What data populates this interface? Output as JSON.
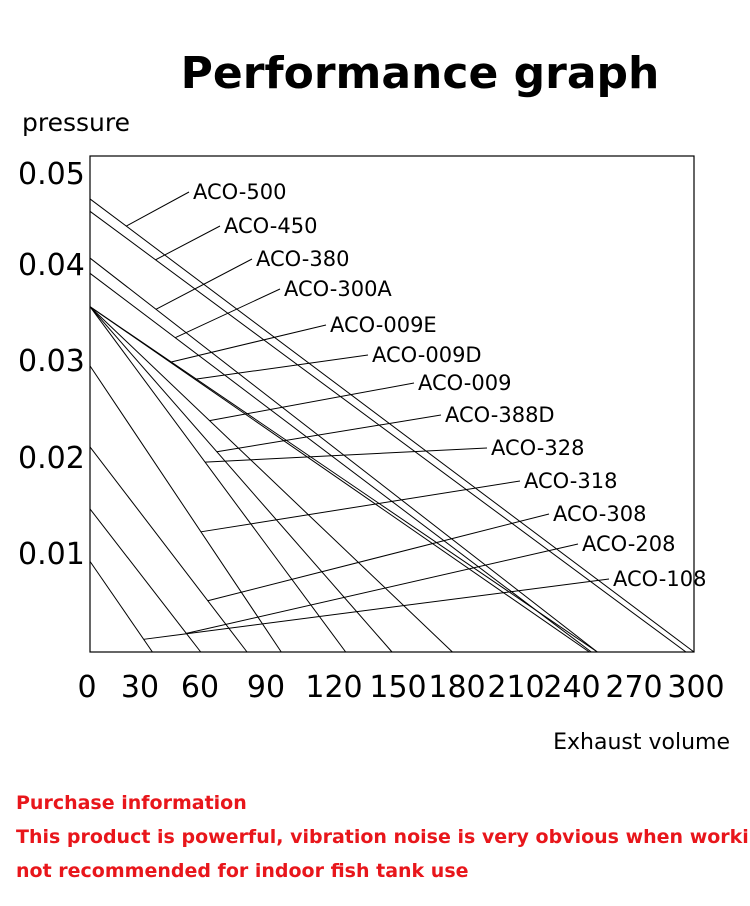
{
  "chart_data": {
    "type": "line",
    "title": "Performance graph",
    "ylabel": "pressure",
    "xlabel": "Exhaust volume",
    "xlim": [
      0,
      300
    ],
    "ylim": [
      0,
      0.052
    ],
    "x_ticks": [
      "0",
      "30",
      "60",
      "90",
      "120",
      "150",
      "180",
      "210",
      "240",
      "270",
      "300"
    ],
    "y_ticks": [
      "0.05",
      "0.04",
      "0.03",
      "0.02",
      "0.01"
    ],
    "grid": false,
    "series": [
      {
        "name": "ACO-500",
        "x": [
          0,
          300
        ],
        "y": [
          0.0475,
          0
        ]
      },
      {
        "name": "ACO-450",
        "x": [
          0,
          296
        ],
        "y": [
          0.0462,
          0
        ]
      },
      {
        "name": "ACO-380",
        "x": [
          0,
          252
        ],
        "y": [
          0.0413,
          0
        ]
      },
      {
        "name": "ACO-300A",
        "x": [
          0,
          249
        ],
        "y": [
          0.0397,
          0
        ]
      },
      {
        "name": "ACO-009E",
        "x": [
          0,
          252
        ],
        "y": [
          0.0362,
          0
        ]
      },
      {
        "name": "ACO-009D",
        "x": [
          0,
          248
        ],
        "y": [
          0.0362,
          0
        ]
      },
      {
        "name": "ACO-009",
        "x": [
          0,
          180
        ],
        "y": [
          0.0362,
          0
        ]
      },
      {
        "name": "ACO-388D",
        "x": [
          0,
          150
        ],
        "y": [
          0.0362,
          0
        ]
      },
      {
        "name": "ACO-328",
        "x": [
          0,
          127
        ],
        "y": [
          0.0362,
          0
        ]
      },
      {
        "name": "ACO-318",
        "x": [
          0,
          95
        ],
        "y": [
          0.03,
          0
        ]
      },
      {
        "name": "ACO-308",
        "x": [
          0,
          78
        ],
        "y": [
          0.0215,
          0
        ]
      },
      {
        "name": "ACO-208",
        "x": [
          0,
          55
        ],
        "y": [
          0.015,
          0
        ]
      },
      {
        "name": "ACO-108",
        "x": [
          0,
          31
        ],
        "y": [
          0.0095,
          0
        ]
      }
    ]
  },
  "notice": {
    "heading": "Purchase information",
    "line1": "This product is powerful, vibration noise is very obvious when working,",
    "line2": "not recommended for indoor fish tank use"
  }
}
